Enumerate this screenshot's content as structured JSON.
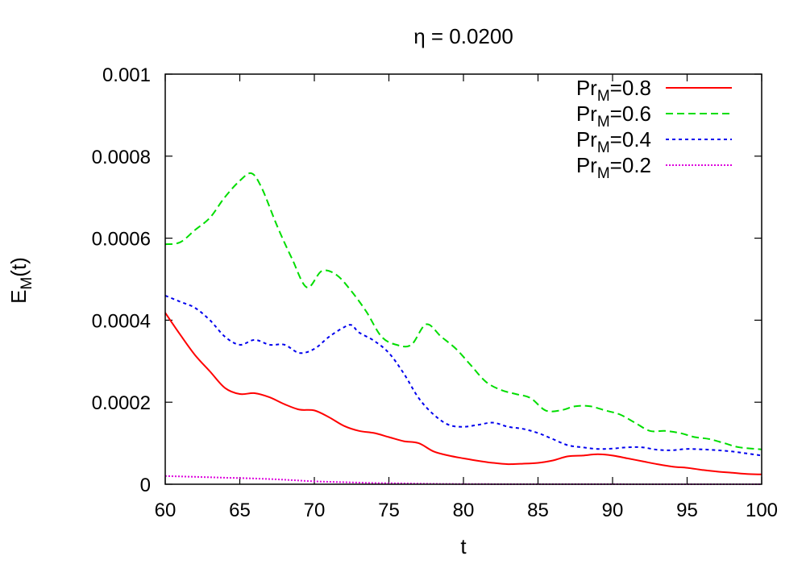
{
  "chart_data": {
    "type": "line",
    "title": "η = 0.0200",
    "xlabel": "t",
    "ylabel": {
      "main": "E",
      "sub": "M",
      "suffix": "(t)"
    },
    "xlim": [
      60,
      100
    ],
    "ylim": [
      0,
      0.001
    ],
    "xticks": [
      "60",
      "65",
      "70",
      "75",
      "80",
      "85",
      "90",
      "95",
      "100"
    ],
    "yticks": [
      "0",
      "0.0002",
      "0.0004",
      "0.0006",
      "0.0008",
      "0.001"
    ],
    "grid": false,
    "legend_position": "top-right",
    "series": [
      {
        "name": "Pr_M=0.8",
        "legend": {
          "main": "Pr",
          "sub": "M",
          "suffix": "=0.8"
        },
        "color": "#ff0000",
        "dash": "solid",
        "points": [
          [
            60,
            0.000418
          ],
          [
            61,
            0.000365
          ],
          [
            62,
            0.000315
          ],
          [
            63,
            0.000275
          ],
          [
            64,
            0.000235
          ],
          [
            65,
            0.00022
          ],
          [
            66,
            0.000222
          ],
          [
            67,
            0.000212
          ],
          [
            68,
            0.000195
          ],
          [
            69,
            0.000182
          ],
          [
            70,
            0.00018
          ],
          [
            71,
            0.000163
          ],
          [
            72,
            0.000142
          ],
          [
            73,
            0.00013
          ],
          [
            74,
            0.000125
          ],
          [
            75,
            0.000115
          ],
          [
            76,
            0.000105
          ],
          [
            77,
            0.0001
          ],
          [
            78,
            8e-05
          ],
          [
            79,
            7e-05
          ],
          [
            80,
            6.3e-05
          ],
          [
            81,
            5.7e-05
          ],
          [
            82,
            5.2e-05
          ],
          [
            83,
            4.9e-05
          ],
          [
            84,
            5e-05
          ],
          [
            85,
            5.2e-05
          ],
          [
            86,
            5.8e-05
          ],
          [
            87,
            6.8e-05
          ],
          [
            88,
            7e-05
          ],
          [
            89,
            7.3e-05
          ],
          [
            90,
            7e-05
          ],
          [
            91,
            6.3e-05
          ],
          [
            92,
            5.6e-05
          ],
          [
            93,
            4.9e-05
          ],
          [
            94,
            4.3e-05
          ],
          [
            95,
            4e-05
          ],
          [
            96,
            3.5e-05
          ],
          [
            97,
            3.1e-05
          ],
          [
            98,
            2.8e-05
          ],
          [
            99,
            2.5e-05
          ],
          [
            100,
            2.4e-05
          ]
        ]
      },
      {
        "name": "Pr_M=0.6",
        "legend": {
          "main": "Pr",
          "sub": "M",
          "suffix": "=0.6"
        },
        "color": "#00dd00",
        "dash": "9,5",
        "points": [
          [
            60,
            0.000585
          ],
          [
            61,
            0.00059
          ],
          [
            62,
            0.00062
          ],
          [
            63,
            0.00065
          ],
          [
            64,
            0.0007
          ],
          [
            65,
            0.00074
          ],
          [
            65.8,
            0.000758
          ],
          [
            66.5,
            0.00072
          ],
          [
            67.5,
            0.00063
          ],
          [
            68.5,
            0.00055
          ],
          [
            69.5,
            0.00048
          ],
          [
            70.5,
            0.00052
          ],
          [
            71.5,
            0.00051
          ],
          [
            72.5,
            0.00047
          ],
          [
            73.5,
            0.00042
          ],
          [
            74.5,
            0.00036
          ],
          [
            75.5,
            0.00034
          ],
          [
            76.5,
            0.00034
          ],
          [
            77.5,
            0.00039
          ],
          [
            78.5,
            0.00036
          ],
          [
            79.5,
            0.00033
          ],
          [
            80.5,
            0.00029
          ],
          [
            81.5,
            0.00025
          ],
          [
            82.5,
            0.00023
          ],
          [
            83.5,
            0.00022
          ],
          [
            84.5,
            0.00021
          ],
          [
            85.5,
            0.00018
          ],
          [
            86.5,
            0.00018
          ],
          [
            87.5,
            0.00019
          ],
          [
            88.5,
            0.00019
          ],
          [
            89.5,
            0.00018
          ],
          [
            90.5,
            0.00017
          ],
          [
            91.5,
            0.00015
          ],
          [
            92.5,
            0.00013
          ],
          [
            93.5,
            0.00013
          ],
          [
            94.5,
            0.000125
          ],
          [
            95.5,
            0.000115
          ],
          [
            96.5,
            0.00011
          ],
          [
            97.5,
            0.0001
          ],
          [
            98.5,
            9e-05
          ],
          [
            100,
            8.5e-05
          ]
        ]
      },
      {
        "name": "Pr_M=0.4",
        "legend": {
          "main": "Pr",
          "sub": "M",
          "suffix": "=0.4"
        },
        "color": "#0000ee",
        "dash": "4,4",
        "points": [
          [
            60,
            0.00046
          ],
          [
            61,
            0.000445
          ],
          [
            62,
            0.00043
          ],
          [
            63,
            0.0004
          ],
          [
            64,
            0.00036
          ],
          [
            65,
            0.00034
          ],
          [
            66,
            0.000352
          ],
          [
            67,
            0.00034
          ],
          [
            68,
            0.00034
          ],
          [
            69,
            0.00032
          ],
          [
            70,
            0.00033
          ],
          [
            71,
            0.00036
          ],
          [
            72,
            0.000383
          ],
          [
            72.5,
            0.000388
          ],
          [
            73,
            0.00037
          ],
          [
            74,
            0.00035
          ],
          [
            75,
            0.00032
          ],
          [
            76,
            0.00027
          ],
          [
            77,
            0.00021
          ],
          [
            78,
            0.00017
          ],
          [
            79,
            0.000145
          ],
          [
            80,
            0.00014
          ],
          [
            81,
            0.000145
          ],
          [
            82,
            0.00015
          ],
          [
            83,
            0.00014
          ],
          [
            84,
            0.000135
          ],
          [
            85,
            0.000125
          ],
          [
            86,
            0.00011
          ],
          [
            87,
            9.5e-05
          ],
          [
            88,
            9e-05
          ],
          [
            89,
            8.6e-05
          ],
          [
            90,
            8.7e-05
          ],
          [
            91,
            9e-05
          ],
          [
            92,
            9e-05
          ],
          [
            93,
            8.4e-05
          ],
          [
            94,
            8.3e-05
          ],
          [
            95,
            8.6e-05
          ],
          [
            96,
            8.5e-05
          ],
          [
            97,
            8.3e-05
          ],
          [
            98,
            8e-05
          ],
          [
            99,
            7.5e-05
          ],
          [
            100,
            7e-05
          ]
        ]
      },
      {
        "name": "Pr_M=0.2",
        "legend": {
          "main": "Pr",
          "sub": "M",
          "suffix": "=0.2"
        },
        "color": "#dd00dd",
        "dash": "2,2",
        "points": [
          [
            60,
            2e-05
          ],
          [
            62,
            1.8e-05
          ],
          [
            64,
            1.6e-05
          ],
          [
            66,
            1.4e-05
          ],
          [
            68,
            1.1e-05
          ],
          [
            70,
            7e-06
          ],
          [
            72,
            5e-06
          ],
          [
            74,
            3e-06
          ],
          [
            76,
            2e-06
          ],
          [
            78,
            1e-06
          ],
          [
            80,
            5e-07
          ],
          [
            85,
            2e-07
          ],
          [
            90,
            1e-07
          ],
          [
            95,
            0.0
          ],
          [
            100,
            0.0
          ]
        ]
      }
    ]
  }
}
